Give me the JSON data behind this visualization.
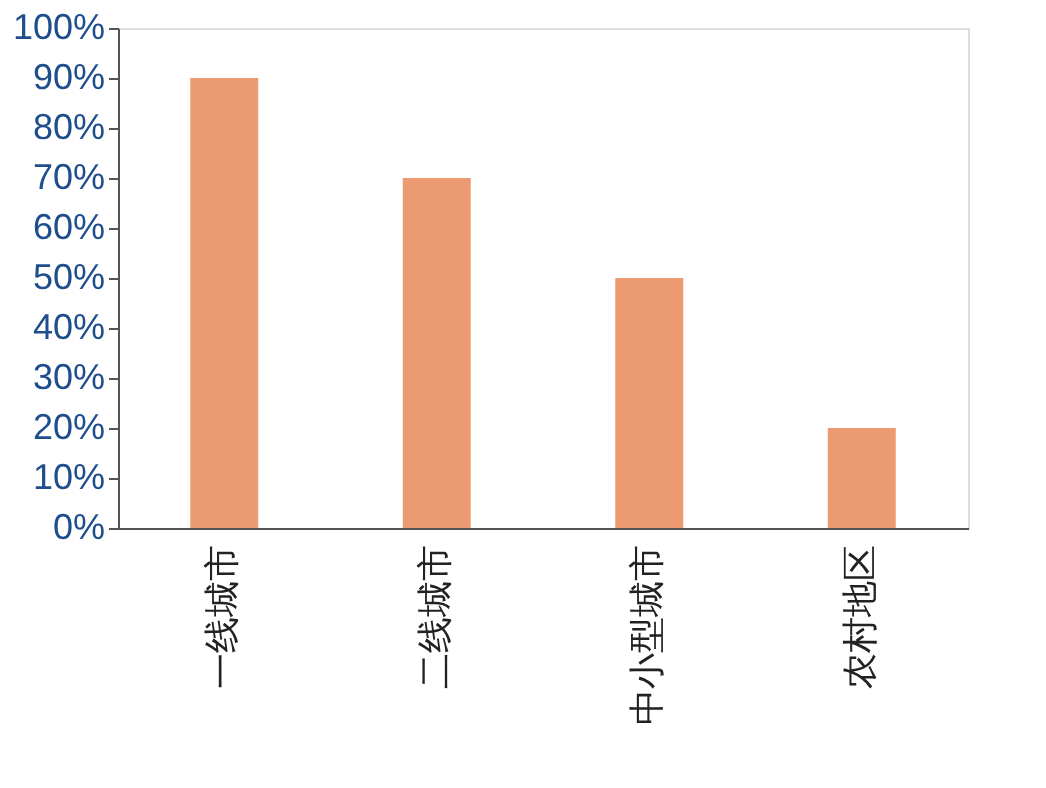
{
  "chart_data": {
    "type": "bar",
    "categories": [
      "一线城市",
      "二线城市",
      "中小型城市",
      "农村地区"
    ],
    "values": [
      90,
      70,
      50,
      20
    ],
    "color": "#eb9a72",
    "ylim": [
      0,
      100
    ],
    "yticks": [
      {
        "value": 0,
        "label": "0%"
      },
      {
        "value": 10,
        "label": "10%"
      },
      {
        "value": 20,
        "label": "20%"
      },
      {
        "value": 30,
        "label": "30%"
      },
      {
        "value": 40,
        "label": "40%"
      },
      {
        "value": 50,
        "label": "50%"
      },
      {
        "value": 60,
        "label": "60%"
      },
      {
        "value": 70,
        "label": "70%"
      },
      {
        "value": 80,
        "label": "80%"
      },
      {
        "value": 90,
        "label": "90%"
      },
      {
        "value": 100,
        "label": "100%"
      }
    ],
    "grid": false
  }
}
